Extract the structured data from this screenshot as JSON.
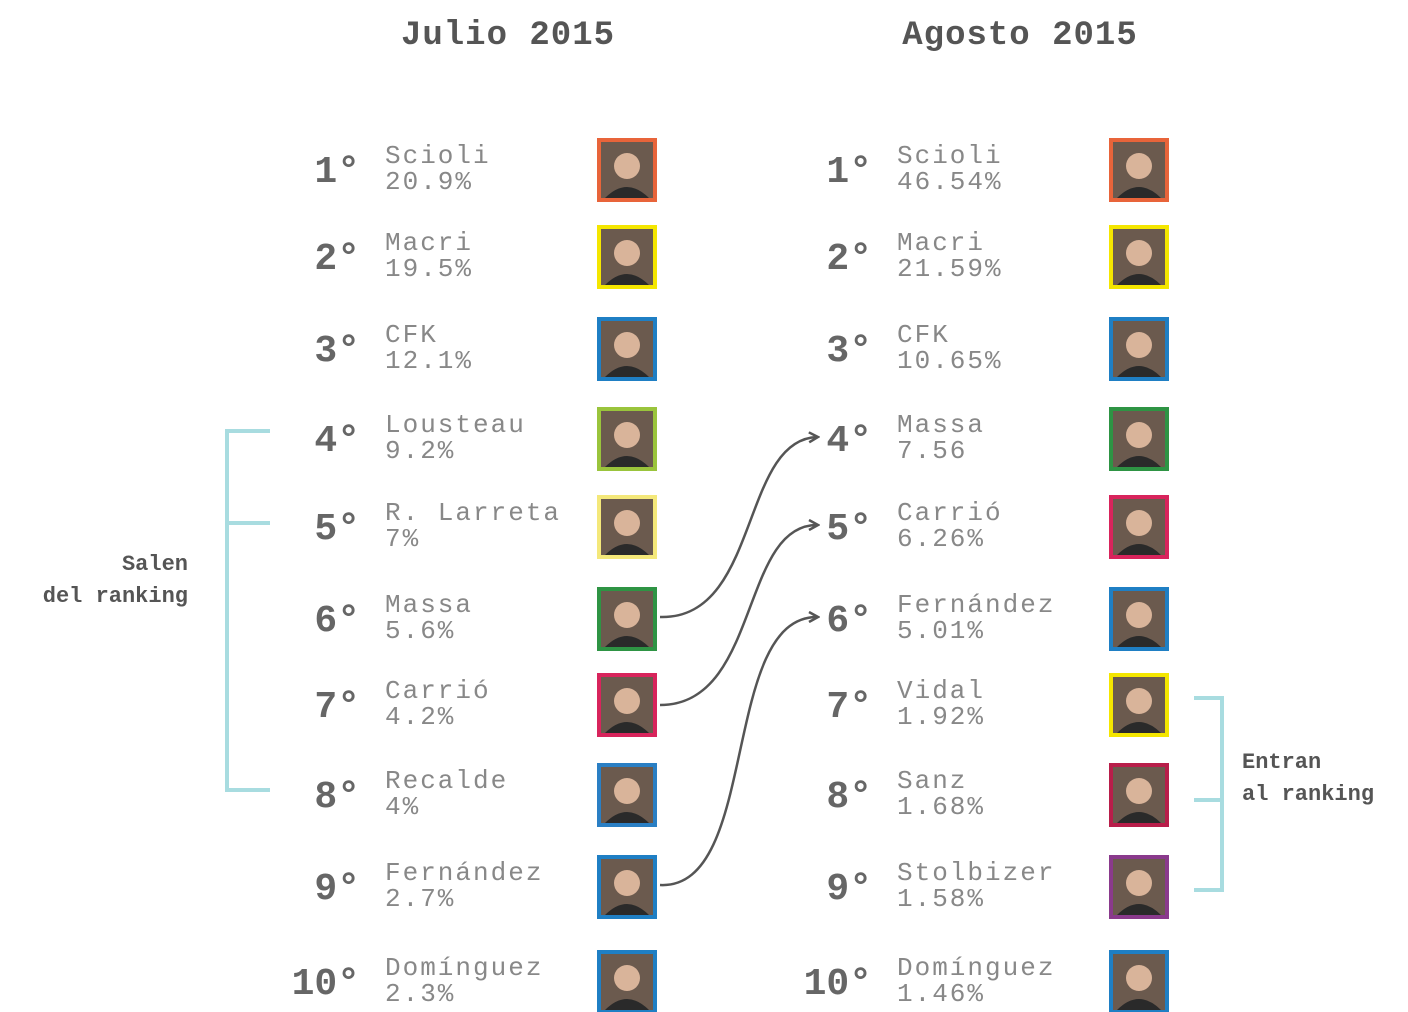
{
  "columns": [
    {
      "title": "Julio 2015",
      "rows": [
        {
          "rank": "1°",
          "name": "Scioli",
          "value": "20.9%",
          "color": "#e8643a"
        },
        {
          "rank": "2°",
          "name": "Macri",
          "value": "19.5%",
          "color": "#f4e600"
        },
        {
          "rank": "3°",
          "name": "CFK",
          "value": "12.1%",
          "color": "#1f7fc4"
        },
        {
          "rank": "4°",
          "name": "Lousteau",
          "value": "9.2%",
          "color": "#9ac43c"
        },
        {
          "rank": "5°",
          "name": "R. Larreta",
          "value": "7%",
          "color": "#f4e87a"
        },
        {
          "rank": "6°",
          "name": "Massa",
          "value": "5.6%",
          "color": "#2e9444"
        },
        {
          "rank": "7°",
          "name": "Carrió",
          "value": "4.2%",
          "color": "#d8245c"
        },
        {
          "rank": "8°",
          "name": "Recalde",
          "value": "4%",
          "color": "#2a7fc4"
        },
        {
          "rank": "9°",
          "name": "Fernández",
          "value": "2.7%",
          "color": "#1f7fc4"
        },
        {
          "rank": "10°",
          "name": "Domínguez",
          "value": "2.3%",
          "color": "#1f7fc4"
        }
      ]
    },
    {
      "title": "Agosto 2015",
      "rows": [
        {
          "rank": "1°",
          "name": "Scioli",
          "value": "46.54%",
          "color": "#e8643a"
        },
        {
          "rank": "2°",
          "name": "Macri",
          "value": "21.59%",
          "color": "#f4e600"
        },
        {
          "rank": "3°",
          "name": "CFK",
          "value": "10.65%",
          "color": "#1f7fc4"
        },
        {
          "rank": "4°",
          "name": "Massa",
          "value": "7.56",
          "color": "#2e9444"
        },
        {
          "rank": "5°",
          "name": "Carrió",
          "value": "6.26%",
          "color": "#d8245c"
        },
        {
          "rank": "6°",
          "name": "Fernández",
          "value": "5.01%",
          "color": "#1f7fc4"
        },
        {
          "rank": "7°",
          "name": "Vidal",
          "value": "1.92%",
          "color": "#f4e600"
        },
        {
          "rank": "8°",
          "name": "Sanz",
          "value": "1.68%",
          "color": "#b81e4a"
        },
        {
          "rank": "9°",
          "name": "Stolbizer",
          "value": "1.58%",
          "color": "#8a3a8c"
        },
        {
          "rank": "10°",
          "name": "Domínguez",
          "value": "1.46%",
          "color": "#1f7fc4"
        }
      ]
    }
  ],
  "left_note": [
    "Salen",
    "del ranking"
  ],
  "right_note": [
    "Entran",
    "al ranking"
  ]
}
